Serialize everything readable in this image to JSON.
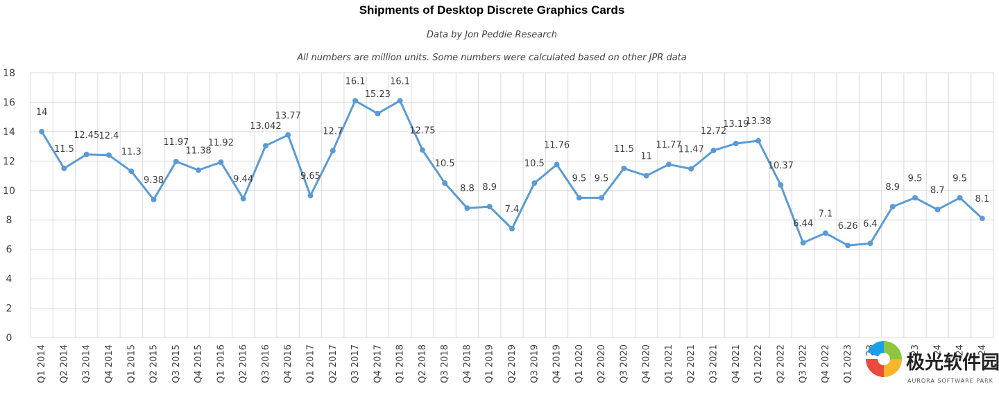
{
  "chart_data": {
    "type": "line",
    "title": "Shipments of Desktop Discrete Graphics Cards",
    "subtitle": "Data by Jon Peddie Research",
    "note": "All numbers are million units. Some numbers were calculated based on other JPR data",
    "xlabel": "",
    "ylabel": "",
    "ylim": [
      0,
      18
    ],
    "yticks": [
      "0",
      "2",
      "4",
      "6",
      "8",
      "10",
      "12",
      "14",
      "16",
      "18"
    ],
    "grid": true,
    "categories": [
      "Q1 2014",
      "Q2 2014",
      "Q3 2014",
      "Q4 2014",
      "Q1 2015",
      "Q2 2015",
      "Q3 2015",
      "Q4 2015",
      "Q1 2016",
      "Q2 2016",
      "Q3 2016",
      "Q4 2016",
      "Q1 2017",
      "Q2 2017",
      "Q3 2017",
      "Q4 2017",
      "Q1 2018",
      "Q2 2018",
      "Q3 2018",
      "Q4 2018",
      "Q1 2019",
      "Q2 2019",
      "Q3 2019",
      "Q4 2019",
      "Q1 2020",
      "Q2 2020",
      "Q3 2020",
      "Q4 2020",
      "Q1 2021",
      "Q2 2021",
      "Q3 2021",
      "Q4 2021",
      "Q1 2022",
      "Q2 2022",
      "Q3 2022",
      "Q4 2022",
      "Q1 2023",
      "23",
      "23",
      "23",
      "24",
      "24",
      "24"
    ],
    "series": [
      {
        "name": "Shipments",
        "color": "#5b9bd5",
        "values": [
          14,
          11.5,
          12.45,
          12.4,
          11.3,
          9.38,
          11.97,
          11.38,
          11.92,
          9.44,
          13.042,
          13.77,
          9.65,
          12.7,
          16.1,
          15.23,
          16.1,
          12.75,
          10.5,
          8.8,
          8.9,
          7.4,
          10.5,
          11.76,
          9.5,
          9.5,
          11.5,
          11,
          11.77,
          11.47,
          12.72,
          13.19,
          13.38,
          10.37,
          6.44,
          7.1,
          6.26,
          6.4,
          8.9,
          9.5,
          8.7,
          9.5,
          8.1
        ],
        "labels": [
          "14",
          "11.5",
          "12.45",
          "12.4",
          "11.3",
          "9.38",
          "11.97",
          "11.38",
          "11.92",
          "9.44",
          "13.042",
          "13.77",
          "9.65",
          "12.7",
          "16.1",
          "15.23",
          "16.1",
          "12.75",
          "10.5",
          "8.8",
          "8.9",
          "7.4",
          "10.5",
          "11.76",
          "9.5",
          "9.5",
          "11.5",
          "11",
          "11.77",
          "11.47",
          "12.72",
          "13.19",
          "13.38",
          "10.37",
          "6.44",
          "7.1",
          "6.26",
          "6.4",
          "8.9",
          "9.5",
          "8.7",
          "9.5",
          "8.1"
        ]
      }
    ]
  },
  "watermark": {
    "name": "极光软件园",
    "sub": "AURORA SOFTWARE PARK"
  }
}
